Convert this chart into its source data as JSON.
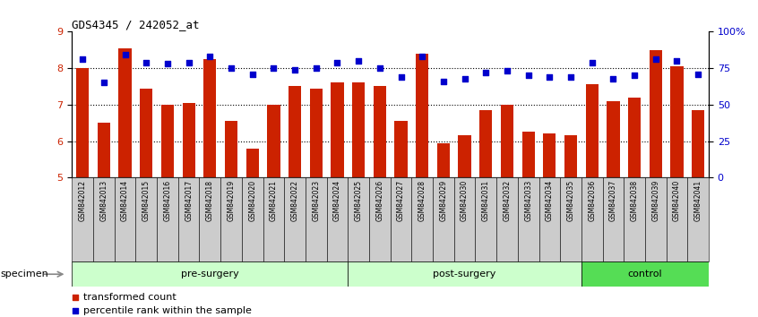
{
  "title": "GDS4345 / 242052_at",
  "samples": [
    "GSM842012",
    "GSM842013",
    "GSM842014",
    "GSM842015",
    "GSM842016",
    "GSM842017",
    "GSM842018",
    "GSM842019",
    "GSM842020",
    "GSM842021",
    "GSM842022",
    "GSM842023",
    "GSM842024",
    "GSM842025",
    "GSM842026",
    "GSM842027",
    "GSM842028",
    "GSM842029",
    "GSM842030",
    "GSM842031",
    "GSM842032",
    "GSM842033",
    "GSM842034",
    "GSM842035",
    "GSM842036",
    "GSM842037",
    "GSM842038",
    "GSM842039",
    "GSM842040",
    "GSM842041"
  ],
  "bar_values": [
    8.0,
    6.5,
    8.55,
    7.45,
    7.0,
    7.05,
    8.25,
    6.55,
    5.8,
    7.0,
    7.5,
    7.45,
    7.6,
    7.6,
    7.5,
    6.55,
    8.4,
    5.95,
    6.15,
    6.85,
    7.0,
    6.25,
    6.2,
    6.15,
    7.55,
    7.1,
    7.2,
    8.5,
    8.05,
    6.85
  ],
  "percentile_values": [
    81,
    65,
    84,
    79,
    78,
    79,
    83,
    75,
    71,
    75,
    74,
    75,
    79,
    80,
    75,
    69,
    83,
    66,
    68,
    72,
    73,
    70,
    69,
    69,
    79,
    68,
    70,
    81,
    80,
    71
  ],
  "groups": [
    {
      "label": "pre-surgery",
      "start": 0,
      "end": 13,
      "color": "#ccffcc"
    },
    {
      "label": "post-surgery",
      "start": 13,
      "end": 24,
      "color": "#ccffcc"
    },
    {
      "label": "control",
      "start": 24,
      "end": 30,
      "color": "#55cc55"
    }
  ],
  "bar_color": "#cc2200",
  "dot_color": "#0000cc",
  "ylim_left": [
    5,
    9
  ],
  "ylim_right": [
    0,
    100
  ],
  "yticks_left": [
    5,
    6,
    7,
    8,
    9
  ],
  "yticks_right": [
    0,
    25,
    50,
    75,
    100
  ],
  "ytick_labels_right": [
    "0",
    "25",
    "50",
    "75",
    "100%"
  ],
  "background_color": "#ffffff",
  "specimen_label": "specimen",
  "legend": [
    {
      "color": "#cc2200",
      "label": "transformed count"
    },
    {
      "color": "#0000cc",
      "label": "percentile rank within the sample"
    }
  ]
}
